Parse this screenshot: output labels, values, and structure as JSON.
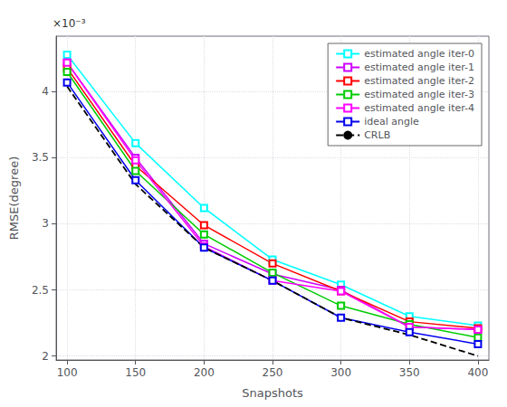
{
  "chart_data": {
    "type": "line",
    "xlabel": "Snapshots",
    "ylabel": "RMSE(degree)",
    "annotations": [
      "×10⁻³"
    ],
    "x": [
      100,
      150,
      200,
      250,
      300,
      350,
      400
    ],
    "series": [
      {
        "name": "estimated angle iter-0",
        "color": "#00FFFF",
        "marker": "square",
        "line_style": "solid",
        "values": [
          0.00428,
          0.00361,
          0.00312,
          0.00273,
          0.00254,
          0.0023,
          0.00223
        ]
      },
      {
        "name": "estimated angle iter-1",
        "color": "#CC00FF",
        "marker": "square",
        "line_style": "solid",
        "values": [
          0.00422,
          0.0035,
          0.00285,
          0.00262,
          0.0025,
          0.00222,
          0.0022
        ]
      },
      {
        "name": "estimated angle iter-2",
        "color": "#FF0000",
        "marker": "square",
        "line_style": "solid",
        "values": [
          0.00418,
          0.00344,
          0.00299,
          0.0027,
          0.00249,
          0.00226,
          0.00221
        ]
      },
      {
        "name": "estimated angle iter-3",
        "color": "#00CC00",
        "marker": "square",
        "line_style": "solid",
        "values": [
          0.00415,
          0.0034,
          0.00292,
          0.00263,
          0.00238,
          0.00224,
          0.00214
        ]
      },
      {
        "name": "estimated angle iter-4",
        "color": "#FF00FF",
        "marker": "square",
        "line_style": "solid",
        "values": [
          0.00422,
          0.00348,
          0.00283,
          0.00257,
          0.00249,
          0.00222,
          0.0022
        ]
      },
      {
        "name": "ideal angle",
        "color": "#0000EE",
        "marker": "square",
        "line_style": "solid",
        "values": [
          0.00407,
          0.00333,
          0.00282,
          0.00257,
          0.00229,
          0.00218,
          0.00209
        ]
      },
      {
        "name": "CRLB",
        "color": "#000000",
        "marker": "none",
        "line_style": "dashed",
        "values": [
          0.00404,
          0.0033,
          0.00282,
          0.00257,
          0.00229,
          0.00216,
          0.002
        ]
      }
    ],
    "xlim": [
      92,
      408
    ],
    "xticks": [
      100,
      150,
      200,
      250,
      300,
      350,
      400
    ],
    "ylim": [
      0.00197,
      0.00442
    ],
    "yticks": [
      {
        "value": 0.002,
        "label": "2"
      },
      {
        "value": 0.0025,
        "label": "2.5"
      },
      {
        "value": 0.003,
        "label": "3"
      },
      {
        "value": 0.0035,
        "label": "3.5"
      },
      {
        "value": 0.004,
        "label": "4"
      }
    ],
    "grid": true,
    "legend": "upper right"
  }
}
